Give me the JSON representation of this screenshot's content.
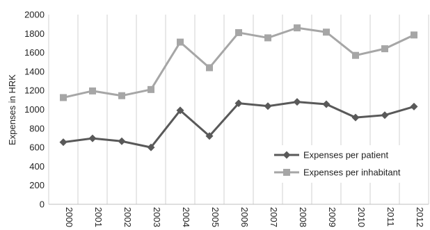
{
  "chart_data": {
    "type": "line",
    "ylabel": "Expenses in HRK",
    "ylim": [
      0,
      2000
    ],
    "yticks": [
      0,
      200,
      400,
      600,
      800,
      1000,
      1200,
      1400,
      1600,
      1800,
      2000
    ],
    "x": [
      "2000",
      "2001",
      "2002",
      "2003",
      "2004",
      "2005",
      "2006",
      "2007",
      "2008",
      "2009",
      "2010",
      "2011",
      "2012"
    ],
    "grid": "vertical",
    "legend_position": "bottom-right",
    "series": [
      {
        "name": "Expenses per patient",
        "color": "#595959",
        "marker": "diamond",
        "values": [
          655,
          695,
          665,
          600,
          990,
          720,
          1065,
          1035,
          1080,
          1055,
          915,
          940,
          1030
        ]
      },
      {
        "name": "Expenses per inhabitant",
        "color": "#a6a6a6",
        "marker": "square",
        "values": [
          1125,
          1195,
          1145,
          1210,
          1710,
          1440,
          1810,
          1755,
          1860,
          1815,
          1570,
          1640,
          1785
        ]
      }
    ]
  }
}
